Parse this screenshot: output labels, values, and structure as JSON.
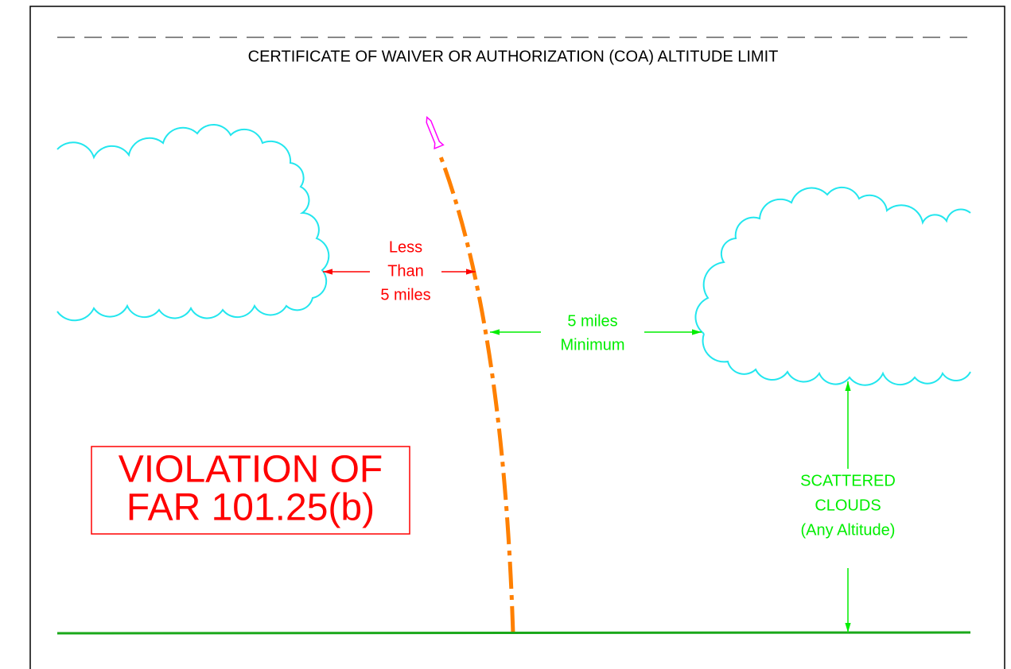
{
  "title": "CERTIFICATE OF WAIVER OR AUTHORIZATION (COA) ALTITUDE LIMIT",
  "labels": {
    "less_than": [
      "Less",
      "Than",
      "5 miles"
    ],
    "minimum": [
      "5 miles",
      "Minimum"
    ],
    "violation": [
      "VIOLATION OF",
      "FAR 101.25(b)"
    ],
    "scattered": [
      "SCATTERED",
      "CLOUDS",
      "(Any Altitude)"
    ]
  }
}
